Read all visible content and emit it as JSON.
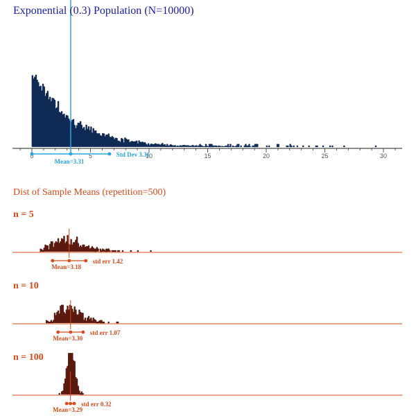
{
  "population": {
    "title": "Exponential (0.3) Population (N=10000)",
    "rate": 0.3,
    "N": 10000,
    "mean_label": "Mean=3.31",
    "sd_label": "Std Dev 3.31",
    "mean": 3.31,
    "sd": 3.31,
    "color": "#0f2a55",
    "accent": "#2aa5e0"
  },
  "sampling": {
    "title": "Dist of Sample Means (repetition=500)",
    "repetition": 500,
    "color": "#5a1a0f",
    "accent": "#d94a1a",
    "panels": [
      {
        "label": "n = 5",
        "n": 5,
        "mean": 3.18,
        "se": 1.42,
        "mean_label": "Mean=3.18",
        "se_label": "std err 1.42"
      },
      {
        "label": "n = 10",
        "n": 10,
        "mean": 3.3,
        "se": 1.07,
        "mean_label": "Mean=3.30",
        "se_label": "std err 1.07"
      },
      {
        "label": "n = 100",
        "n": 100,
        "mean": 3.29,
        "se": 0.32,
        "mean_label": "Mean=3.29",
        "se_label": "std err 0.32"
      }
    ]
  },
  "chart_data": {
    "type": "scatter",
    "title": "Exponential (0.3) Population (N=10000)",
    "xlabel": "",
    "ylabel": "",
    "xlim": [
      -1,
      31.5
    ],
    "x_ticks": [
      0,
      5,
      10,
      15,
      20,
      25,
      30
    ],
    "x_tick_labels": [
      "0",
      "5",
      "10",
      "15",
      "20",
      "25",
      "30"
    ],
    "grid": false,
    "series": [
      {
        "name": "",
        "distribution": "exponential",
        "rate": 0.3,
        "count": 10000,
        "mean": 3.31,
        "sd": 3.31,
        "max_observed": 29.5
      }
    ],
    "sample_means": [
      {
        "n": 5,
        "repetition": 500,
        "mean": 3.18,
        "std_err": 1.42
      },
      {
        "n": 10,
        "repetition": 500,
        "mean": 3.3,
        "std_err": 1.07
      },
      {
        "n": 100,
        "repetition": 500,
        "mean": 3.29,
        "std_err": 0.32
      }
    ]
  }
}
